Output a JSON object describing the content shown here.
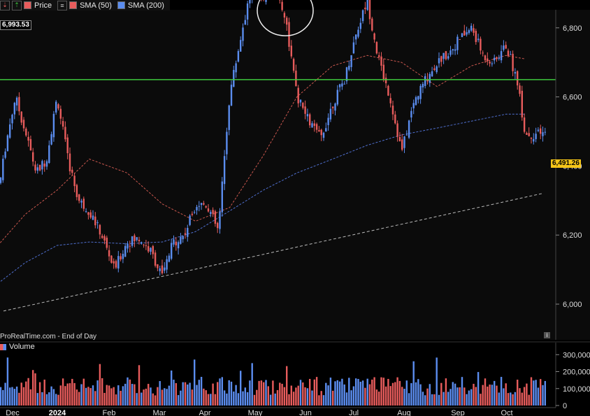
{
  "legend": {
    "price_label": "Price",
    "sma50_label": "SMA (50)",
    "sma200_label": "SMA (200)",
    "price_color": "#e85c5c",
    "sma50_color": "#e85c5c",
    "sma200_color": "#5b8def"
  },
  "tags": {
    "high_value": "6,993.53",
    "last_value": "6,491.26"
  },
  "source_label": "ProRealTime.com - End of Day",
  "volume_label": "Volume",
  "icons": {
    "info": "info-icon",
    "up": "arrow-up-icon",
    "price_tool": "price-tool-icon",
    "list": "list-icon"
  },
  "colors": {
    "up": "#5b8def",
    "down": "#e85c5c",
    "support": "#3ec93e",
    "background": "#000000"
  },
  "chart_data": [
    {
      "type": "line",
      "title": "",
      "x_ticks": [
        "Dec",
        "2024",
        "Feb",
        "Mar",
        "Apr",
        "May",
        "Jun",
        "Jul",
        "Aug",
        "Sep",
        "Oct"
      ],
      "y_ticks": [
        6000,
        6200,
        6400,
        6600,
        6800,
        7000
      ],
      "ylim": [
        5900,
        7100
      ],
      "support_level": 6650,
      "high_marker": 6993.53,
      "last_price": 6491.26,
      "series": [
        {
          "name": "Price",
          "x": [
            "Nov 28",
            "Dec 5",
            "Dec 12",
            "Dec 19",
            "Dec 27",
            "Jan 3",
            "Jan 10",
            "Jan 17",
            "Jan 24",
            "Jan 31",
            "Feb 7",
            "Feb 14",
            "Feb 21",
            "Feb 28",
            "Mar 6",
            "Mar 13",
            "Mar 20",
            "Mar 27",
            "Apr 3",
            "Apr 10",
            "Apr 17",
            "Apr 24",
            "May 1",
            "May 8",
            "May 15",
            "May 22",
            "May 29",
            "Jun 5",
            "Jun 12",
            "Jun 19",
            "Jun 26",
            "Jul 3",
            "Jul 10",
            "Jul 17",
            "Jul 24",
            "Jul 31",
            "Aug 7",
            "Aug 14",
            "Aug 21",
            "Aug 28",
            "Sep 4",
            "Sep 11",
            "Sep 18",
            "Sep 25",
            "Oct 2",
            "Oct 9",
            "Oct 16",
            "Oct 21"
          ],
          "values": [
            6310,
            6460,
            6600,
            6500,
            6380,
            6420,
            6600,
            6420,
            6300,
            6270,
            6200,
            6100,
            6180,
            6190,
            6150,
            6080,
            6180,
            6200,
            6290,
            6290,
            6210,
            6610,
            6780,
            6930,
            6890,
            6930,
            6830,
            6600,
            6530,
            6480,
            6580,
            6650,
            6780,
            6880,
            6710,
            6600,
            6440,
            6580,
            6650,
            6700,
            6730,
            6770,
            6800,
            6720,
            6700,
            6750,
            6650,
            6491
          ]
        },
        {
          "name": "SMA (50)",
          "x": [
            "Nov 28",
            "Dec 19",
            "Jan 10",
            "Jan 31",
            "Feb 21",
            "Mar 13",
            "Apr 3",
            "Apr 24",
            "May 15",
            "Jun 5",
            "Jun 26",
            "Jul 17",
            "Aug 7",
            "Aug 28",
            "Sep 18",
            "Oct 9",
            "Oct 21"
          ],
          "values": [
            6170,
            6260,
            6330,
            6420,
            6380,
            6290,
            6240,
            6280,
            6430,
            6600,
            6690,
            6720,
            6700,
            6630,
            6690,
            6720,
            6710
          ]
        },
        {
          "name": "SMA (200)",
          "x": [
            "Nov 28",
            "Dec 19",
            "Jan 10",
            "Jan 31",
            "Feb 21",
            "Mar 13",
            "Apr 3",
            "Apr 24",
            "May 15",
            "Jun 5",
            "Jun 26",
            "Jul 17",
            "Aug 7",
            "Aug 28",
            "Sep 18",
            "Oct 9",
            "Oct 21"
          ],
          "values": [
            6060,
            6120,
            6170,
            6180,
            6175,
            6180,
            6210,
            6270,
            6330,
            6380,
            6420,
            6460,
            6490,
            6510,
            6530,
            6550,
            6550
          ]
        }
      ],
      "trendline": {
        "from": 5980,
        "to": 6320
      }
    },
    {
      "type": "bar",
      "title": "",
      "y_ticks": [
        0,
        100000,
        200000,
        300000
      ],
      "y_tick_labels": [
        "0",
        "100,000",
        "200,000",
        "300,000"
      ],
      "ylim": [
        0,
        330000
      ]
    }
  ]
}
